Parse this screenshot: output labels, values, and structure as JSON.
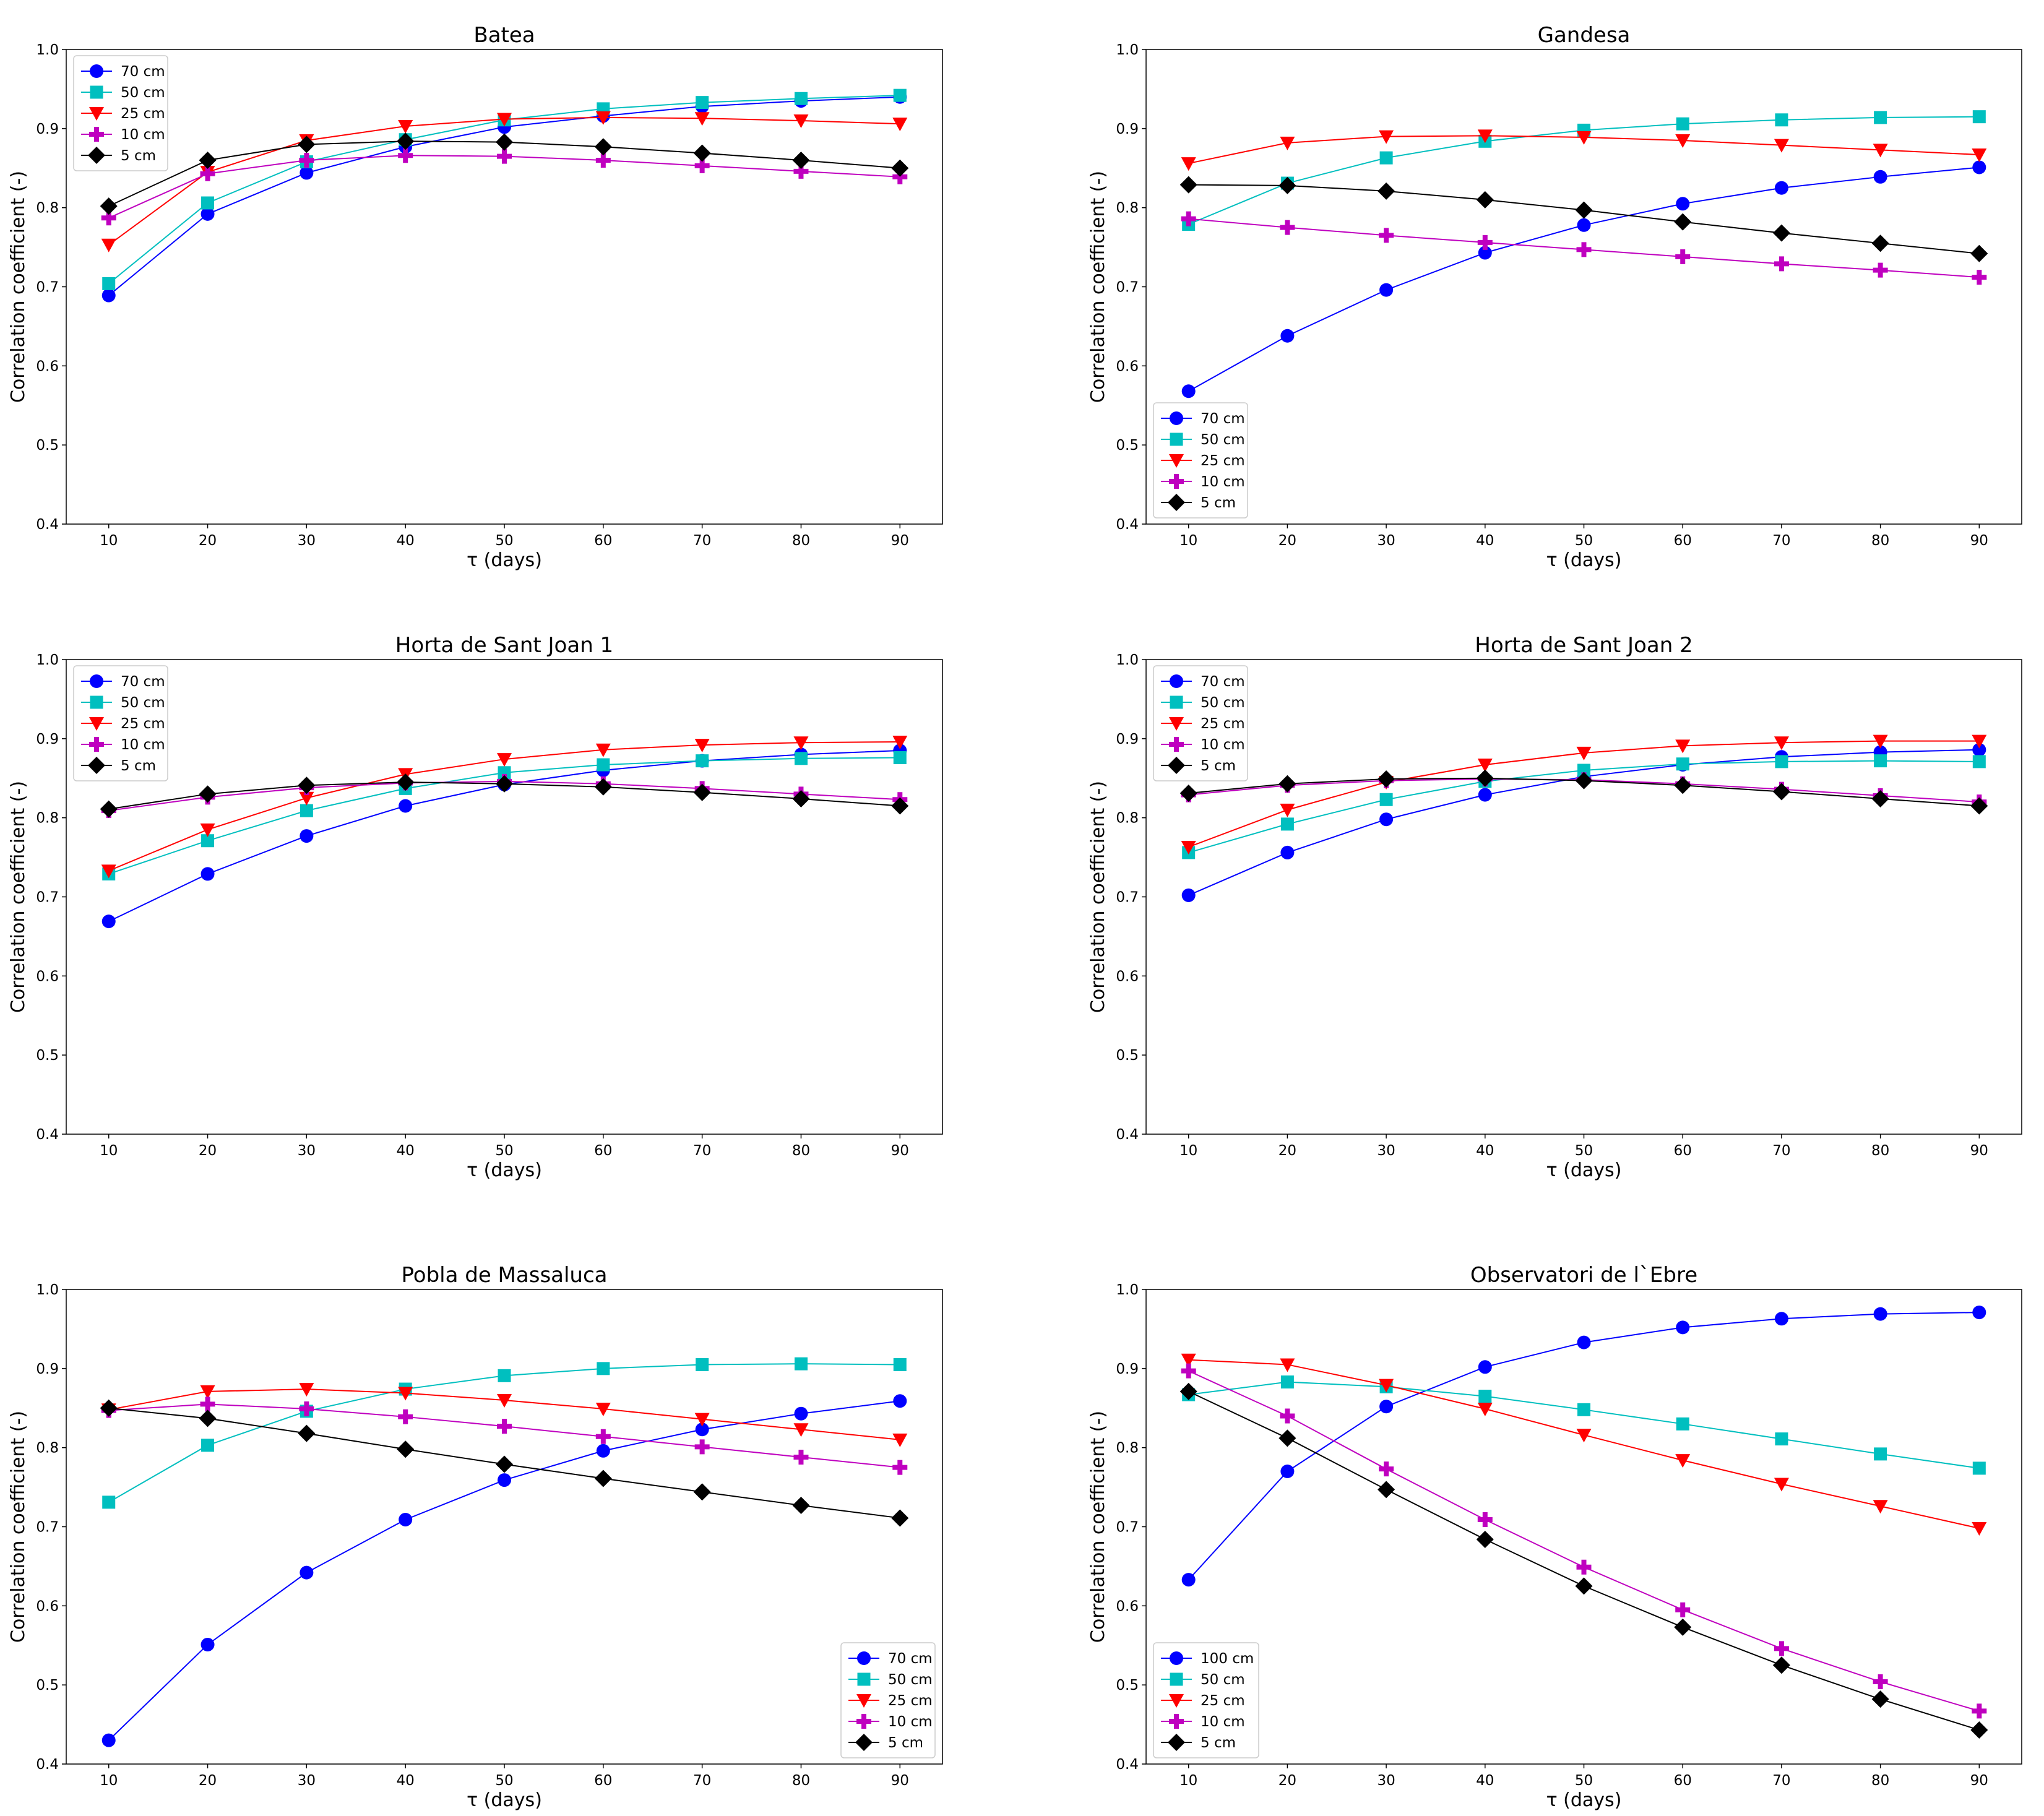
{
  "chart_data": [
    {
      "type": "line",
      "title": "Batea",
      "xlabel": "τ (days)",
      "ylabel": "Correlation coefficient (-)",
      "x": [
        10,
        20,
        30,
        40,
        50,
        60,
        70,
        80,
        90
      ],
      "xticks": [
        "10",
        "20",
        "30",
        "40",
        "50",
        "60",
        "70",
        "80",
        "90"
      ],
      "yticks": [
        "0.4",
        "0.5",
        "0.6",
        "0.7",
        "0.8",
        "0.9",
        "1.0"
      ],
      "xlim": [
        5.7,
        94.3
      ],
      "ylim": [
        0.4,
        1.0
      ],
      "legend": "upper-left",
      "series": [
        {
          "name": "70 cm",
          "color": "#0000ff",
          "marker": "circle",
          "values": [
            0.689,
            0.792,
            0.844,
            0.877,
            0.902,
            0.916,
            0.928,
            0.935,
            0.94
          ]
        },
        {
          "name": "50 cm",
          "color": "#00bfbf",
          "marker": "square",
          "values": [
            0.704,
            0.806,
            0.858,
            0.886,
            0.911,
            0.925,
            0.933,
            0.938,
            0.942
          ]
        },
        {
          "name": "25 cm",
          "color": "#ff0000",
          "marker": "triangle-down",
          "values": [
            0.753,
            0.845,
            0.885,
            0.903,
            0.912,
            0.914,
            0.913,
            0.91,
            0.906
          ]
        },
        {
          "name": "10 cm",
          "color": "#bf00bf",
          "marker": "plus",
          "values": [
            0.787,
            0.843,
            0.86,
            0.866,
            0.865,
            0.86,
            0.853,
            0.846,
            0.839
          ]
        },
        {
          "name": "5 cm",
          "color": "#000000",
          "marker": "diamond",
          "values": [
            0.802,
            0.86,
            0.88,
            0.884,
            0.883,
            0.877,
            0.869,
            0.86,
            0.85
          ]
        }
      ]
    },
    {
      "type": "line",
      "title": "Gandesa",
      "xlabel": "τ (days)",
      "ylabel": "Correlation coefficient (-)",
      "x": [
        10,
        20,
        30,
        40,
        50,
        60,
        70,
        80,
        90
      ],
      "xticks": [
        "10",
        "20",
        "30",
        "40",
        "50",
        "60",
        "70",
        "80",
        "90"
      ],
      "yticks": [
        "0.4",
        "0.5",
        "0.6",
        "0.7",
        "0.8",
        "0.9",
        "1.0"
      ],
      "xlim": [
        5.7,
        94.3
      ],
      "ylim": [
        0.4,
        1.0
      ],
      "legend": "lower-left",
      "series": [
        {
          "name": "70 cm",
          "color": "#0000ff",
          "marker": "circle",
          "values": [
            0.568,
            0.638,
            0.696,
            0.743,
            0.778,
            0.805,
            0.825,
            0.839,
            0.851
          ]
        },
        {
          "name": "50 cm",
          "color": "#00bfbf",
          "marker": "square",
          "values": [
            0.779,
            0.831,
            0.863,
            0.884,
            0.898,
            0.906,
            0.911,
            0.914,
            0.915
          ]
        },
        {
          "name": "25 cm",
          "color": "#ff0000",
          "marker": "triangle-down",
          "values": [
            0.856,
            0.882,
            0.89,
            0.891,
            0.889,
            0.885,
            0.879,
            0.873,
            0.867
          ]
        },
        {
          "name": "10 cm",
          "color": "#bf00bf",
          "marker": "plus",
          "values": [
            0.786,
            0.775,
            0.765,
            0.756,
            0.747,
            0.738,
            0.729,
            0.721,
            0.712
          ]
        },
        {
          "name": "5 cm",
          "color": "#000000",
          "marker": "diamond",
          "values": [
            0.829,
            0.828,
            0.821,
            0.81,
            0.797,
            0.782,
            0.768,
            0.755,
            0.742
          ]
        }
      ]
    },
    {
      "type": "line",
      "title": "Horta de Sant Joan 1",
      "xlabel": "τ (days)",
      "ylabel": "Correlation coefficient (-)",
      "x": [
        10,
        20,
        30,
        40,
        50,
        60,
        70,
        80,
        90
      ],
      "xticks": [
        "10",
        "20",
        "30",
        "40",
        "50",
        "60",
        "70",
        "80",
        "90"
      ],
      "yticks": [
        "0.4",
        "0.5",
        "0.6",
        "0.7",
        "0.8",
        "0.9",
        "1.0"
      ],
      "xlim": [
        5.7,
        94.3
      ],
      "ylim": [
        0.4,
        1.0
      ],
      "legend": "upper-left",
      "series": [
        {
          "name": "70 cm",
          "color": "#0000ff",
          "marker": "circle",
          "values": [
            0.669,
            0.729,
            0.777,
            0.815,
            0.842,
            0.86,
            0.872,
            0.88,
            0.885
          ]
        },
        {
          "name": "50 cm",
          "color": "#00bfbf",
          "marker": "square",
          "values": [
            0.729,
            0.771,
            0.809,
            0.837,
            0.857,
            0.867,
            0.872,
            0.875,
            0.876
          ]
        },
        {
          "name": "25 cm",
          "color": "#ff0000",
          "marker": "triangle-down",
          "values": [
            0.733,
            0.785,
            0.825,
            0.855,
            0.874,
            0.886,
            0.892,
            0.895,
            0.896
          ]
        },
        {
          "name": "10 cm",
          "color": "#bf00bf",
          "marker": "plus",
          "values": [
            0.809,
            0.826,
            0.838,
            0.844,
            0.846,
            0.843,
            0.837,
            0.83,
            0.823
          ]
        },
        {
          "name": "5 cm",
          "color": "#000000",
          "marker": "diamond",
          "values": [
            0.811,
            0.83,
            0.841,
            0.845,
            0.843,
            0.839,
            0.832,
            0.824,
            0.815
          ]
        }
      ]
    },
    {
      "type": "line",
      "title": "Horta de Sant Joan 2",
      "xlabel": "τ (days)",
      "ylabel": "Correlation coefficient (-)",
      "x": [
        10,
        20,
        30,
        40,
        50,
        60,
        70,
        80,
        90
      ],
      "xticks": [
        "10",
        "20",
        "30",
        "40",
        "50",
        "60",
        "70",
        "80",
        "90"
      ],
      "yticks": [
        "0.4",
        "0.5",
        "0.6",
        "0.7",
        "0.8",
        "0.9",
        "1.0"
      ],
      "xlim": [
        5.7,
        94.3
      ],
      "ylim": [
        0.4,
        1.0
      ],
      "legend": "upper-left",
      "series": [
        {
          "name": "70 cm",
          "color": "#0000ff",
          "marker": "circle",
          "values": [
            0.702,
            0.756,
            0.798,
            0.829,
            0.852,
            0.867,
            0.877,
            0.883,
            0.886
          ]
        },
        {
          "name": "50 cm",
          "color": "#00bfbf",
          "marker": "square",
          "values": [
            0.756,
            0.792,
            0.823,
            0.846,
            0.86,
            0.868,
            0.871,
            0.872,
            0.871
          ]
        },
        {
          "name": "25 cm",
          "color": "#ff0000",
          "marker": "triangle-down",
          "values": [
            0.763,
            0.81,
            0.845,
            0.867,
            0.882,
            0.891,
            0.895,
            0.897,
            0.897
          ]
        },
        {
          "name": "10 cm",
          "color": "#bf00bf",
          "marker": "plus",
          "values": [
            0.829,
            0.841,
            0.847,
            0.849,
            0.848,
            0.843,
            0.836,
            0.828,
            0.82
          ]
        },
        {
          "name": "5 cm",
          "color": "#000000",
          "marker": "diamond",
          "values": [
            0.831,
            0.843,
            0.849,
            0.85,
            0.847,
            0.841,
            0.833,
            0.824,
            0.815
          ]
        }
      ]
    },
    {
      "type": "line",
      "title": "Pobla de Massaluca",
      "xlabel": "τ (days)",
      "ylabel": "Correlation coefficient (-)",
      "x": [
        10,
        20,
        30,
        40,
        50,
        60,
        70,
        80,
        90
      ],
      "xticks": [
        "10",
        "20",
        "30",
        "40",
        "50",
        "60",
        "70",
        "80",
        "90"
      ],
      "yticks": [
        "0.4",
        "0.5",
        "0.6",
        "0.7",
        "0.8",
        "0.9",
        "1.0"
      ],
      "xlim": [
        5.7,
        94.3
      ],
      "ylim": [
        0.4,
        1.0
      ],
      "legend": "lower-right",
      "series": [
        {
          "name": "70 cm",
          "color": "#0000ff",
          "marker": "circle",
          "values": [
            0.43,
            0.551,
            0.642,
            0.709,
            0.759,
            0.796,
            0.823,
            0.843,
            0.859
          ]
        },
        {
          "name": "50 cm",
          "color": "#00bfbf",
          "marker": "square",
          "values": [
            0.731,
            0.803,
            0.846,
            0.874,
            0.891,
            0.9,
            0.905,
            0.906,
            0.905
          ]
        },
        {
          "name": "25 cm",
          "color": "#ff0000",
          "marker": "triangle-down",
          "values": [
            0.848,
            0.871,
            0.874,
            0.869,
            0.86,
            0.849,
            0.836,
            0.823,
            0.81
          ]
        },
        {
          "name": "10 cm",
          "color": "#bf00bf",
          "marker": "plus",
          "values": [
            0.847,
            0.855,
            0.849,
            0.839,
            0.827,
            0.814,
            0.801,
            0.788,
            0.775
          ]
        },
        {
          "name": "5 cm",
          "color": "#000000",
          "marker": "diamond",
          "values": [
            0.85,
            0.837,
            0.818,
            0.798,
            0.779,
            0.761,
            0.744,
            0.727,
            0.711
          ]
        }
      ]
    },
    {
      "type": "line",
      "title": "Observatori de l`Ebre",
      "xlabel": "τ (days)",
      "ylabel": "Correlation coefficient (-)",
      "x": [
        10,
        20,
        30,
        40,
        50,
        60,
        70,
        80,
        90
      ],
      "xticks": [
        "10",
        "20",
        "30",
        "40",
        "50",
        "60",
        "70",
        "80",
        "90"
      ],
      "yticks": [
        "0.4",
        "0.5",
        "0.6",
        "0.7",
        "0.8",
        "0.9",
        "1.0"
      ],
      "xlim": [
        5.7,
        94.3
      ],
      "ylim": [
        0.4,
        1.0
      ],
      "legend": "lower-left",
      "series": [
        {
          "name": "100 cm",
          "color": "#0000ff",
          "marker": "circle",
          "values": [
            0.633,
            0.77,
            0.852,
            0.902,
            0.933,
            0.952,
            0.963,
            0.969,
            0.971
          ]
        },
        {
          "name": "50 cm",
          "color": "#00bfbf",
          "marker": "square",
          "values": [
            0.867,
            0.883,
            0.877,
            0.865,
            0.848,
            0.83,
            0.811,
            0.792,
            0.774
          ]
        },
        {
          "name": "25 cm",
          "color": "#ff0000",
          "marker": "triangle-down",
          "values": [
            0.911,
            0.905,
            0.879,
            0.849,
            0.816,
            0.784,
            0.754,
            0.726,
            0.698
          ]
        },
        {
          "name": "10 cm",
          "color": "#bf00bf",
          "marker": "plus",
          "values": [
            0.897,
            0.84,
            0.773,
            0.709,
            0.649,
            0.595,
            0.546,
            0.504,
            0.467
          ]
        },
        {
          "name": "5 cm",
          "color": "#000000",
          "marker": "diamond",
          "values": [
            0.871,
            0.812,
            0.747,
            0.684,
            0.625,
            0.573,
            0.525,
            0.482,
            0.443
          ]
        }
      ]
    }
  ]
}
